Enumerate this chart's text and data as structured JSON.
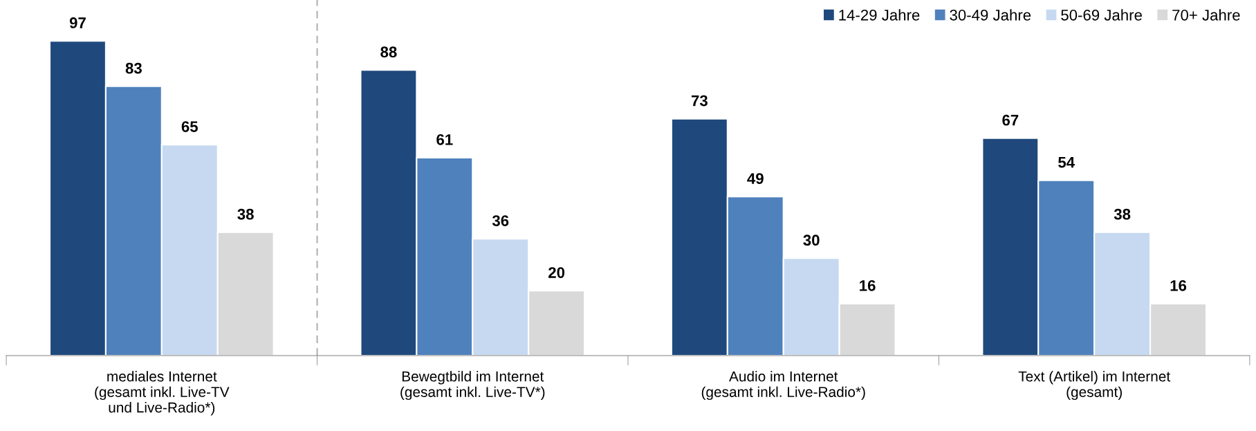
{
  "chart_data": {
    "type": "bar",
    "categories": [
      "mediales Internet\n(gesamt inkl. Live-TV\nund Live-Radio*)",
      "Bewegtbild im Internet\n(gesamt inkl. Live-TV*)",
      "Audio im Internet\n(gesamt inkl. Live-Radio*)",
      "Text (Artikel) im Internet\n(gesamt)"
    ],
    "series": [
      {
        "name": "14-29 Jahre",
        "color": "#1f497d",
        "values": [
          97,
          88,
          73,
          67
        ]
      },
      {
        "name": "30-49 Jahre",
        "color": "#4f81bd",
        "values": [
          83,
          61,
          49,
          54
        ]
      },
      {
        "name": "50-69 Jahre",
        "color": "#c6d9f1",
        "values": [
          65,
          36,
          30,
          38
        ]
      },
      {
        "name": "70+ Jahre",
        "color": "#d9d9d9",
        "values": [
          38,
          20,
          16,
          16
        ]
      }
    ],
    "data_labels": true,
    "legend": "top right",
    "grid": false
  }
}
